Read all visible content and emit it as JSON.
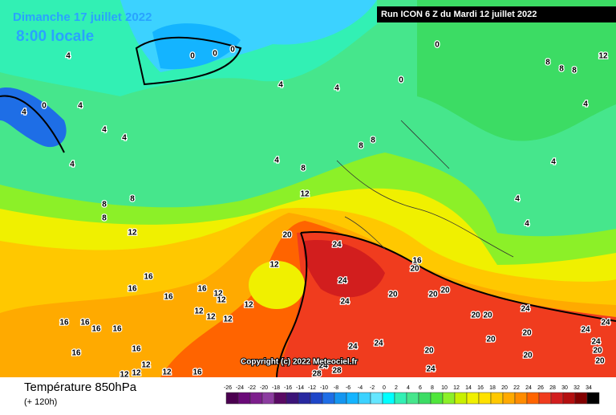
{
  "header": {
    "date": "Dimanche 17 juillet 2022",
    "time": "8:00 locale",
    "run": "Run ICON 6 Z du Mardi 12 juillet 2022"
  },
  "copyright": "Copyright (c) 2022 Meteociel.fr",
  "footer": {
    "title": "Température 850hPa",
    "lead": "(+ 120h)"
  },
  "map_labels": [
    4,
    0,
    0,
    0,
    4,
    4,
    4,
    0,
    4,
    4,
    4,
    4,
    4,
    8,
    8,
    8,
    12,
    8,
    8,
    8,
    12,
    20,
    24,
    12,
    16,
    20,
    24,
    24,
    16,
    16,
    16,
    16,
    12,
    12,
    12,
    12,
    12,
    12,
    16,
    16,
    16,
    16,
    16,
    16,
    12,
    12,
    12,
    16,
    12,
    24,
    24,
    20,
    20,
    20,
    20,
    20,
    20,
    20,
    20,
    20,
    24,
    24,
    24,
    24,
    20,
    20,
    24,
    28,
    28,
    24,
    0,
    0,
    8,
    8,
    8,
    12,
    4,
    4,
    4,
    4
  ],
  "legend": {
    "ticks": [
      -26,
      -24,
      -22,
      -20,
      -18,
      -16,
      -14,
      -12,
      -10,
      -8,
      -6,
      -4,
      -2,
      0,
      2,
      4,
      6,
      8,
      10,
      12,
      14,
      16,
      18,
      20,
      22,
      24,
      26,
      28,
      30,
      32,
      34
    ],
    "colors": [
      "#4b0050",
      "#6a0a78",
      "#7d1e8c",
      "#8c3ca0",
      "#5a0a64",
      "#3c1478",
      "#2828a0",
      "#1e46c8",
      "#1e6ee6",
      "#1496f0",
      "#14b4ff",
      "#3cd2ff",
      "#64e6ff",
      "#00ffff",
      "#32f0b4",
      "#46e68c",
      "#3cdc64",
      "#50e63c",
      "#8cf028",
      "#c8f000",
      "#f0f000",
      "#ffe100",
      "#ffc800",
      "#ffaa00",
      "#ff8c00",
      "#ff6400",
      "#f03c1e",
      "#d21e1e",
      "#b40f0f",
      "#820000",
      "#000000"
    ]
  }
}
